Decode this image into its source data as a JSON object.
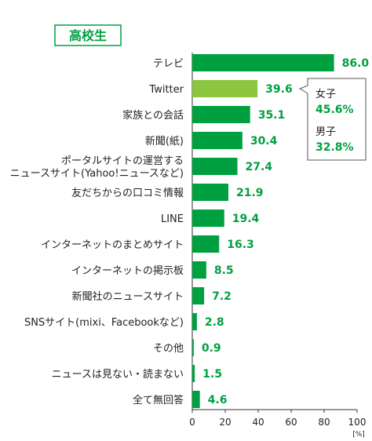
{
  "badge": {
    "text": "高校生"
  },
  "chart_data": {
    "type": "bar",
    "orientation": "horizontal",
    "categories": [
      [
        "テレビ"
      ],
      [
        "Twitter"
      ],
      [
        "家族との会話"
      ],
      [
        "新聞(紙)"
      ],
      [
        "ポータルサイトの運営する",
        "ニュースサイト(Yahoo!ニュースなど)"
      ],
      [
        "友だちからの口コミ情報"
      ],
      [
        "LINE"
      ],
      [
        "インターネットのまとめサイト"
      ],
      [
        "インターネットの掲示板"
      ],
      [
        "新聞社のニュースサイト"
      ],
      [
        "SNSサイト(mixi、Facebookなど)"
      ],
      [
        "その他"
      ],
      [
        "ニュースは見ない・読まない"
      ],
      [
        "全て無回答"
      ]
    ],
    "values": [
      86.0,
      39.6,
      35.1,
      30.4,
      27.4,
      21.9,
      19.4,
      16.3,
      8.5,
      7.2,
      2.8,
      0.9,
      1.5,
      4.6
    ],
    "value_labels": [
      "86.0",
      "39.6",
      "35.1",
      "30.4",
      "27.4",
      "21.9",
      "19.4",
      "16.3",
      "8.5",
      "7.2",
      "2.8",
      "0.9",
      "1.5",
      "4.6"
    ],
    "highlight_index": 1,
    "xlim": [
      0,
      100
    ],
    "xticks": [
      0,
      20,
      40,
      60,
      80,
      100
    ],
    "xtick_labels": [
      "0",
      "20",
      "40",
      "60",
      "80",
      "100"
    ],
    "unit": "[%]",
    "colors": {
      "bar": "#00a040",
      "highlight": "#8cc63f",
      "label": "#00a040"
    },
    "callout": {
      "target_index": 1,
      "items": [
        {
          "label": "女子",
          "value": "45.6%"
        },
        {
          "label": "男子",
          "value": "32.8%"
        }
      ]
    }
  }
}
